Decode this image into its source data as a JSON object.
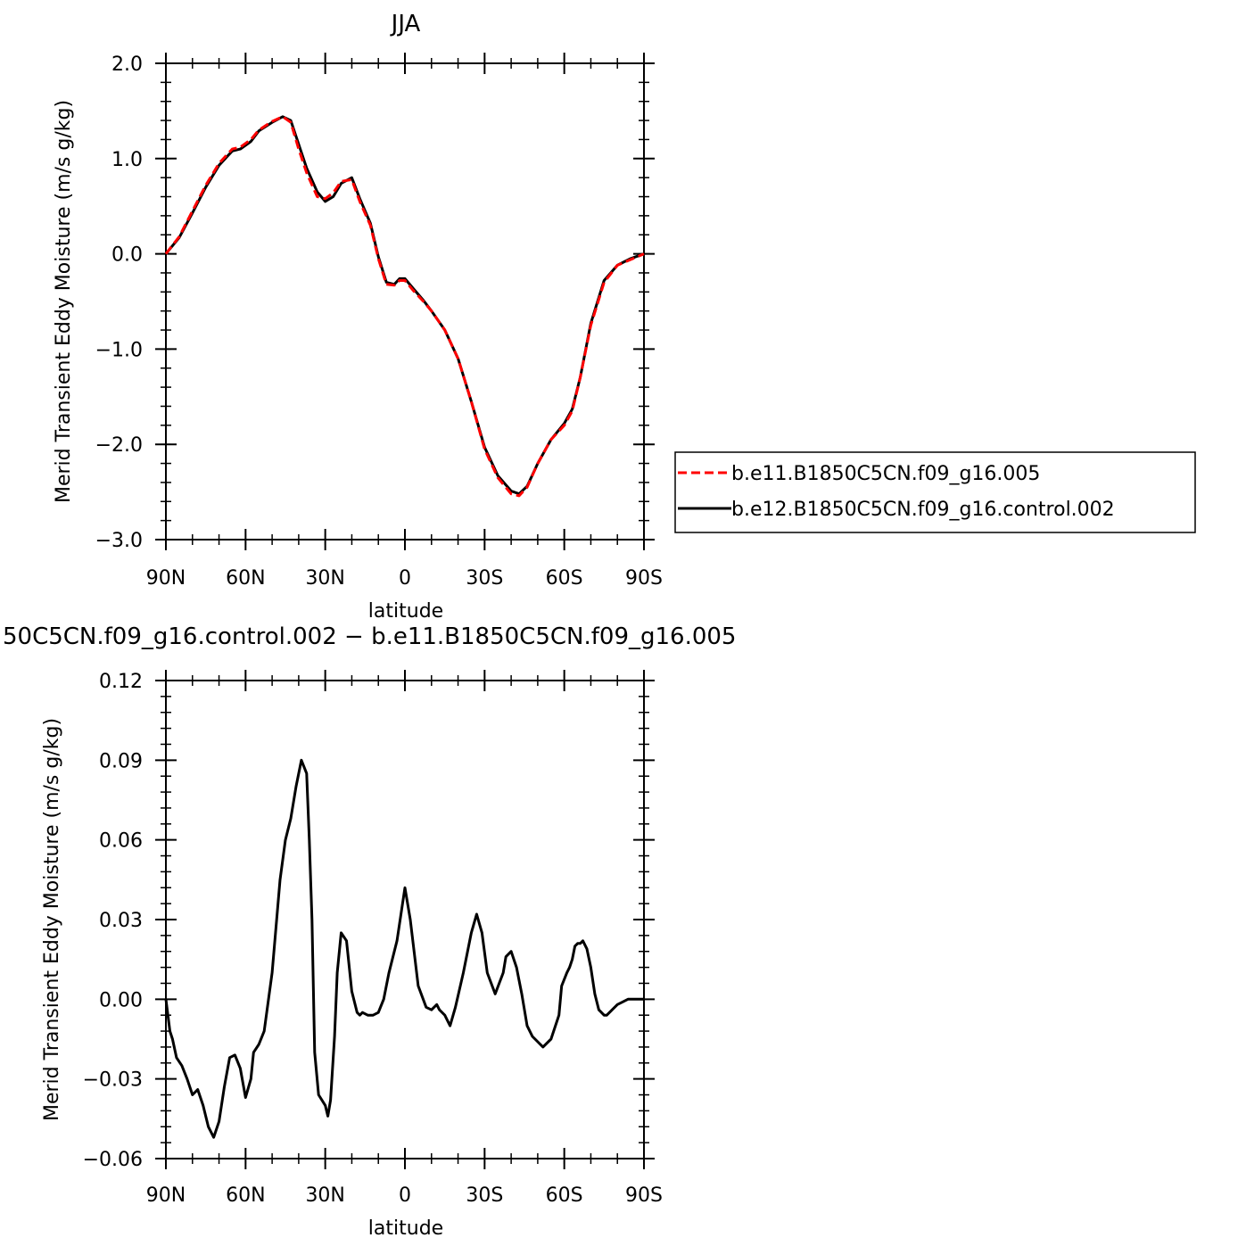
{
  "chart_data": [
    {
      "type": "line",
      "title": "JJA",
      "xlabel": "latitude",
      "ylabel": "Merid Transient Eddy Moisture (m/s g/kg)",
      "xlim": [
        90,
        -90
      ],
      "ylim": [
        -3.0,
        2.0
      ],
      "x_ticks": [
        90,
        60,
        30,
        0,
        -30,
        -60,
        -90
      ],
      "x_tick_labels": [
        "90N",
        "60N",
        "30N",
        "0",
        "30S",
        "60S",
        "90S"
      ],
      "y_ticks": [
        -3.0,
        -2.0,
        -1.0,
        0.0,
        1.0,
        2.0
      ],
      "y_tick_labels": [
        "−3.0",
        "−2.0",
        "−1.0",
        "0.0",
        "1.0",
        "2.0"
      ],
      "legend": "right",
      "series": [
        {
          "name": "b.e11.B1850C5CN.f09_g16.005",
          "color": "#ff0000",
          "style": "dashed",
          "x": [
            90,
            85,
            80,
            75,
            70,
            65,
            62,
            58,
            55,
            50,
            46,
            43,
            40,
            37,
            33,
            30,
            27,
            24,
            20,
            17,
            13,
            10,
            7,
            4,
            2,
            0,
            -3,
            -7,
            -10,
            -15,
            -20,
            -25,
            -30,
            -35,
            -40,
            -43,
            -46,
            -50,
            -55,
            -60,
            -63,
            -66,
            -70,
            -75,
            -80,
            -85,
            -90
          ],
          "y": [
            0.0,
            0.18,
            0.45,
            0.72,
            0.95,
            1.1,
            1.12,
            1.2,
            1.3,
            1.39,
            1.44,
            1.38,
            1.1,
            0.85,
            0.6,
            0.58,
            0.64,
            0.76,
            0.78,
            0.55,
            0.3,
            -0.05,
            -0.32,
            -0.33,
            -0.28,
            -0.28,
            -0.38,
            -0.5,
            -0.6,
            -0.8,
            -1.1,
            -1.55,
            -2.05,
            -2.35,
            -2.52,
            -2.54,
            -2.45,
            -2.2,
            -1.95,
            -1.8,
            -1.65,
            -1.3,
            -0.75,
            -0.3,
            -0.12,
            -0.06,
            0.0
          ]
        },
        {
          "name": "b.e12.B1850C5CN.f09_g16.control.002",
          "color": "#000000",
          "style": "solid",
          "x": [
            90,
            85,
            80,
            75,
            70,
            65,
            62,
            58,
            55,
            50,
            46,
            43,
            40,
            37,
            33,
            30,
            27,
            24,
            20,
            17,
            13,
            10,
            7,
            4,
            2,
            0,
            -3,
            -7,
            -10,
            -15,
            -20,
            -25,
            -30,
            -35,
            -40,
            -43,
            -46,
            -50,
            -55,
            -60,
            -63,
            -66,
            -70,
            -75,
            -80,
            -85,
            -90
          ],
          "y": [
            0.0,
            0.17,
            0.43,
            0.7,
            0.93,
            1.08,
            1.1,
            1.18,
            1.29,
            1.38,
            1.44,
            1.4,
            1.15,
            0.9,
            0.65,
            0.55,
            0.6,
            0.74,
            0.8,
            0.58,
            0.32,
            -0.03,
            -0.3,
            -0.32,
            -0.26,
            -0.26,
            -0.36,
            -0.49,
            -0.6,
            -0.8,
            -1.1,
            -1.55,
            -2.03,
            -2.33,
            -2.49,
            -2.52,
            -2.44,
            -2.2,
            -1.95,
            -1.78,
            -1.63,
            -1.3,
            -0.73,
            -0.28,
            -0.12,
            -0.05,
            0.0
          ]
        }
      ]
    },
    {
      "type": "line",
      "title": "50C5CN.f09_g16.control.002 − b.e11.B1850C5CN.f09_g16.005",
      "xlabel": "latitude",
      "ylabel": "Merid Transient Eddy Moisture (m/s g/kg)",
      "xlim": [
        90,
        -90
      ],
      "ylim": [
        -0.06,
        0.12
      ],
      "x_ticks": [
        90,
        60,
        30,
        0,
        -30,
        -60,
        -90
      ],
      "x_tick_labels": [
        "90N",
        "60N",
        "30N",
        "0",
        "30S",
        "60S",
        "90S"
      ],
      "y_ticks": [
        -0.06,
        -0.03,
        0.0,
        0.03,
        0.06,
        0.09,
        0.12
      ],
      "y_tick_labels": [
        "−0.06",
        "−0.03",
        "0.00",
        "0.03",
        "0.06",
        "0.09",
        "0.12"
      ],
      "series": [
        {
          "color": "#000000",
          "style": "solid",
          "x": [
            90,
            88.5,
            87.5,
            86,
            84,
            82,
            80,
            78,
            76,
            74,
            72,
            70,
            68,
            66,
            64,
            62,
            60,
            58,
            57,
            55,
            53,
            50,
            47,
            45,
            43,
            41,
            39,
            37,
            36,
            35,
            34,
            32.5,
            30,
            29,
            28,
            26.5,
            25.5,
            24,
            22,
            20,
            18,
            17,
            16,
            14,
            12,
            10,
            8,
            6,
            3,
            0,
            -2,
            -5,
            -8,
            -10,
            -12,
            -13,
            -15,
            -17,
            -19,
            -22,
            -25,
            -27,
            -29,
            -31,
            -34,
            -37,
            -38,
            -40,
            -42,
            -44,
            -46,
            -48,
            -50,
            -52,
            -55,
            -58,
            -59,
            -61,
            -62,
            -63,
            -64,
            -65,
            -66,
            -67,
            -68.5,
            -70,
            -71.5,
            -73,
            -75,
            -76,
            -78,
            -80,
            -82,
            -84,
            -86,
            -88,
            -90
          ],
          "y": [
            0.0,
            -0.012,
            -0.015,
            -0.022,
            -0.025,
            -0.03,
            -0.036,
            -0.034,
            -0.04,
            -0.048,
            -0.052,
            -0.046,
            -0.033,
            -0.022,
            -0.021,
            -0.026,
            -0.037,
            -0.03,
            -0.02,
            -0.017,
            -0.012,
            0.01,
            0.045,
            0.06,
            0.068,
            0.08,
            0.09,
            0.085,
            0.06,
            0.03,
            -0.02,
            -0.036,
            -0.04,
            -0.044,
            -0.038,
            -0.014,
            0.01,
            0.025,
            0.022,
            0.003,
            -0.005,
            -0.006,
            -0.005,
            -0.006,
            -0.006,
            -0.005,
            0.0,
            0.01,
            0.022,
            0.042,
            0.03,
            0.005,
            -0.003,
            -0.004,
            -0.002,
            -0.004,
            -0.006,
            -0.01,
            -0.003,
            0.01,
            0.025,
            0.032,
            0.025,
            0.01,
            0.002,
            0.01,
            0.016,
            0.018,
            0.012,
            0.002,
            -0.01,
            -0.014,
            -0.016,
            -0.018,
            -0.015,
            -0.006,
            0.005,
            0.01,
            0.012,
            0.015,
            0.02,
            0.021,
            0.021,
            0.022,
            0.019,
            0.012,
            0.002,
            -0.004,
            -0.006,
            -0.006,
            -0.004,
            -0.002,
            -0.001,
            0.0,
            0.0,
            0.0,
            0.0
          ]
        }
      ]
    }
  ]
}
